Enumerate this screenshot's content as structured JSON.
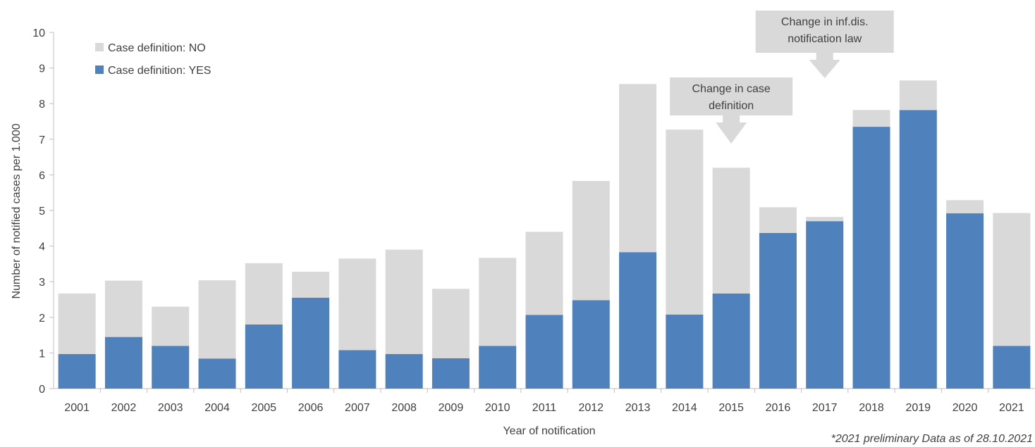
{
  "chart_data": {
    "type": "bar",
    "stacked": true,
    "categories": [
      "2001",
      "2002",
      "2003",
      "2004",
      "2005",
      "2006",
      "2007",
      "2008",
      "2009",
      "2010",
      "2011",
      "2012",
      "2013",
      "2014",
      "2015",
      "2016",
      "2017",
      "2018",
      "2019",
      "2020",
      "2021"
    ],
    "series": [
      {
        "name": "Case definition: YES",
        "color": "#4f81bd",
        "values": [
          0.97,
          1.45,
          1.2,
          0.84,
          1.8,
          2.55,
          1.08,
          0.97,
          0.85,
          1.2,
          2.07,
          2.48,
          3.83,
          2.08,
          2.67,
          4.37,
          4.7,
          7.35,
          7.82,
          4.92,
          1.2
        ]
      },
      {
        "name": "Case definition: NO",
        "color": "#d9d9d9",
        "values": [
          1.7,
          1.58,
          1.1,
          2.2,
          1.72,
          0.73,
          2.57,
          2.93,
          1.95,
          2.47,
          2.33,
          3.35,
          4.72,
          5.19,
          3.53,
          0.72,
          0.12,
          0.47,
          0.83,
          0.37,
          3.73
        ]
      }
    ],
    "ylim": [
      0,
      10
    ],
    "yticks": [
      0,
      1,
      2,
      3,
      4,
      5,
      6,
      7,
      8,
      9,
      10
    ],
    "xlabel": "Year of notification",
    "ylabel": "Number of notified cases per 1.000",
    "legend_position": "top-left",
    "annotations": [
      {
        "text_lines": [
          "Change in case",
          "definition"
        ],
        "year": "2015"
      },
      {
        "text_lines": [
          "Change in inf.dis.",
          "notification law"
        ],
        "year": "2017"
      }
    ],
    "footnote": "*2021 preliminary Data as of 28.10.2021"
  }
}
